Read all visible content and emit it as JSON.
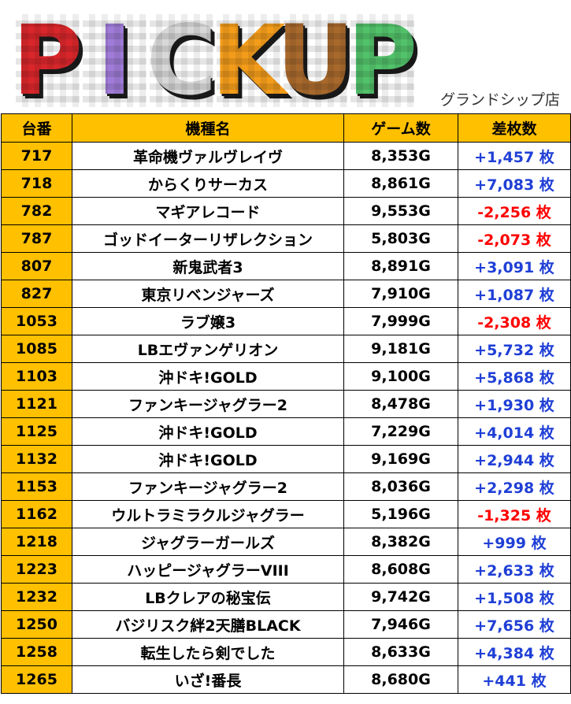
{
  "header": {
    "logo_letters": [
      {
        "char": "P",
        "color": "#d8262b"
      },
      {
        "char": "I",
        "color": "#a07cd8"
      },
      {
        "char": "C",
        "color": "#d8d8d8"
      },
      {
        "char": "K",
        "color": "#f39c1a"
      },
      {
        "char": "U",
        "color": "#a8692c"
      },
      {
        "char": "P",
        "color": "#52c26a"
      }
    ],
    "store": "グランドシップ店"
  },
  "table": {
    "headers": [
      "台番",
      "機種名",
      "ゲーム数",
      "差枚数"
    ],
    "rows": [
      {
        "num": "717",
        "machine": "革命機ヴァルヴレイヴ",
        "games": "8,353G",
        "diff": "+1,457 枚",
        "sign": "pos"
      },
      {
        "num": "718",
        "machine": "からくりサーカス",
        "games": "8,861G",
        "diff": "+7,083 枚",
        "sign": "pos"
      },
      {
        "num": "782",
        "machine": "マギアレコード",
        "games": "9,553G",
        "diff": "-2,256 枚",
        "sign": "neg"
      },
      {
        "num": "787",
        "machine": "ゴッドイーターリザレクション",
        "games": "5,803G",
        "diff": "-2,073 枚",
        "sign": "neg"
      },
      {
        "num": "807",
        "machine": "新鬼武者3",
        "games": "8,891G",
        "diff": "+3,091 枚",
        "sign": "pos"
      },
      {
        "num": "827",
        "machine": "東京リベンジャーズ",
        "games": "7,910G",
        "diff": "+1,087 枚",
        "sign": "pos"
      },
      {
        "num": "1053",
        "machine": "ラブ嬢3",
        "games": "7,999G",
        "diff": "-2,308 枚",
        "sign": "neg"
      },
      {
        "num": "1085",
        "machine": "LBエヴァンゲリオン",
        "games": "9,181G",
        "diff": "+5,732 枚",
        "sign": "pos"
      },
      {
        "num": "1103",
        "machine": "沖ドキ!GOLD",
        "games": "9,100G",
        "diff": "+5,868 枚",
        "sign": "pos"
      },
      {
        "num": "1121",
        "machine": "ファンキージャグラー2",
        "games": "8,478G",
        "diff": "+1,930 枚",
        "sign": "pos"
      },
      {
        "num": "1125",
        "machine": "沖ドキ!GOLD",
        "games": "7,229G",
        "diff": "+4,014 枚",
        "sign": "pos"
      },
      {
        "num": "1132",
        "machine": "沖ドキ!GOLD",
        "games": "9,169G",
        "diff": "+2,944 枚",
        "sign": "pos"
      },
      {
        "num": "1153",
        "machine": "ファンキージャグラー2",
        "games": "8,036G",
        "diff": "+2,298 枚",
        "sign": "pos"
      },
      {
        "num": "1162",
        "machine": "ウルトラミラクルジャグラー",
        "games": "5,196G",
        "diff": "-1,325 枚",
        "sign": "neg"
      },
      {
        "num": "1218",
        "machine": "ジャグラーガールズ",
        "games": "8,382G",
        "diff": "+999 枚",
        "sign": "pos"
      },
      {
        "num": "1223",
        "machine": "ハッピージャグラーVIII",
        "games": "8,608G",
        "diff": "+2,633 枚",
        "sign": "pos"
      },
      {
        "num": "1232",
        "machine": "LBクレアの秘宝伝",
        "games": "9,742G",
        "diff": "+1,508 枚",
        "sign": "pos"
      },
      {
        "num": "1250",
        "machine": "バジリスク絆2天膳BLACK",
        "games": "7,946G",
        "diff": "+7,656 枚",
        "sign": "pos"
      },
      {
        "num": "1258",
        "machine": "転生したら剣でした",
        "games": "8,633G",
        "diff": "+4,384 枚",
        "sign": "pos"
      },
      {
        "num": "1265",
        "machine": "いざ!番長",
        "games": "8,680G",
        "diff": "+441 枚",
        "sign": "pos"
      }
    ]
  }
}
